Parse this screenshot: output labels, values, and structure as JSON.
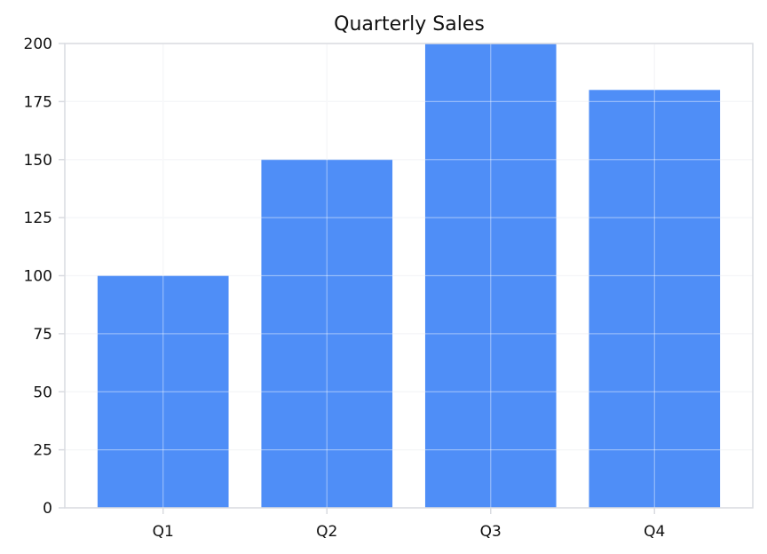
{
  "chart_data": {
    "type": "bar",
    "title": "Quarterly Sales",
    "xlabel": "",
    "ylabel": "",
    "categories": [
      "Q1",
      "Q2",
      "Q3",
      "Q4"
    ],
    "values": [
      100,
      150,
      200,
      180
    ],
    "ylim": [
      0,
      200
    ],
    "yticks": [
      0,
      25,
      50,
      75,
      100,
      125,
      150,
      175,
      200
    ],
    "grid": true,
    "legend": "none",
    "colors": {
      "bar": "#4f8ef7",
      "axis": "#d9dbe0",
      "grid": "#eef0f3",
      "text": "#111111"
    }
  }
}
